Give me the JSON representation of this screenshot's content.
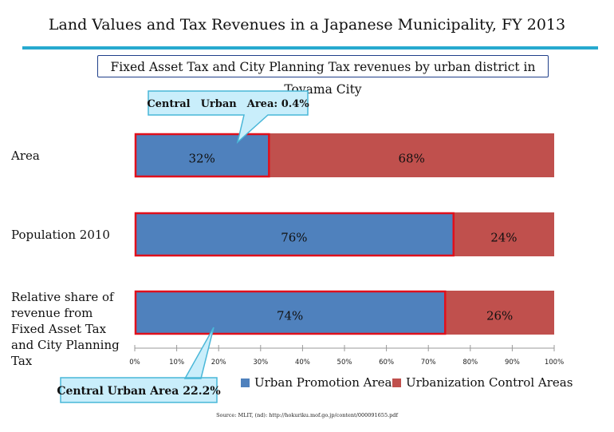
{
  "title": "Land Values and Tax Revenues in a Japanese Municipality, FY 2013",
  "subtitle": "Fixed Asset Tax and City Planning Tax revenues by urban district in Toyama City",
  "callouts": {
    "top": "Central　Urban　Area: 0.4%",
    "bottom": "Central Urban Area 22.2%"
  },
  "source": "Source: MLIT, (nd): http://hokuriku.mof.go.jp/content/000091655.pdf",
  "colors": {
    "urban_promotion": "#4f81bd",
    "urbanization_control": "#c0504d",
    "highlight_border": "#e0101c",
    "accent": "#27a9cf"
  },
  "chart_data": {
    "type": "bar",
    "orientation": "horizontal",
    "stacked": true,
    "categories": [
      "Area",
      "Population 2010",
      "Relative share of revenue from Fixed Asset Tax and City Planning Tax"
    ],
    "series": [
      {
        "name": "Urban Promotion Areas",
        "values": [
          32,
          76,
          74
        ],
        "labels": [
          "32%",
          "76%",
          "74%"
        ]
      },
      {
        "name": "Urbanization Control Areas",
        "values": [
          68,
          24,
          26
        ],
        "labels": [
          "68%",
          "24%",
          "26%"
        ]
      }
    ],
    "xlim": [
      0,
      100
    ],
    "xticks": [
      0,
      10,
      20,
      30,
      40,
      50,
      60,
      70,
      80,
      90,
      100
    ],
    "xtick_labels": [
      "0%",
      "10%",
      "20%",
      "30%",
      "40%",
      "50%",
      "60%",
      "70%",
      "80%",
      "90%",
      "100%"
    ],
    "legend_position": "bottom"
  }
}
